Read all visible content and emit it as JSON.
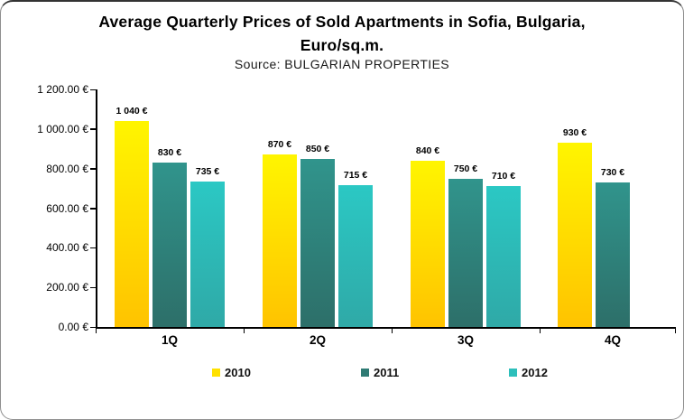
{
  "title": {
    "line1": "Average Quarterly Prices of Sold Apartments in Sofia, Bulgaria,",
    "line2": "Euro/sq.m.",
    "source": "Source: BULGARIAN PROPERTIES"
  },
  "chart_data": {
    "type": "bar",
    "title": "Average Quarterly Prices of Sold Apartments in Sofia, Bulgaria, Euro/sq.m.",
    "subtitle": "Source: BULGARIAN PROPERTIES",
    "categories": [
      "1Q",
      "2Q",
      "3Q",
      "4Q"
    ],
    "series": [
      {
        "name": "2010",
        "values": [
          1040,
          870,
          840,
          930
        ],
        "labels": [
          "1 040 €",
          "870 €",
          "840 €",
          "930 €"
        ],
        "gradient": [
          "#FFF500",
          "#FFDC00",
          "#FFC300"
        ],
        "legend_color": "#FFE100"
      },
      {
        "name": "2011",
        "values": [
          830,
          850,
          750,
          730
        ],
        "labels": [
          "830 €",
          "850 €",
          "750 €",
          "730 €"
        ],
        "gradient": [
          "#30948C",
          "#2D6F69"
        ],
        "legend_color": "#2F7B74"
      },
      {
        "name": "2012",
        "values": [
          735,
          715,
          710,
          null
        ],
        "labels": [
          "735 €",
          "715 €",
          "710 €",
          null
        ],
        "gradient": [
          "#2BC8C4",
          "#2FA9A7"
        ],
        "legend_color": "#2DBFBB"
      }
    ],
    "y_axis": {
      "min": 0,
      "max": 1200,
      "tick_values": [
        1200,
        1000,
        800,
        600,
        400,
        200,
        0
      ],
      "ticks": [
        "1 200.00 €",
        "1 000.00 €",
        "800.00 €",
        "600.00 €",
        "400.00 €",
        "200.00 €",
        "0.00 €"
      ]
    },
    "grid": false,
    "legend_position": "bottom",
    "legend_entries": [
      "2010",
      "2011",
      "2012"
    ]
  }
}
